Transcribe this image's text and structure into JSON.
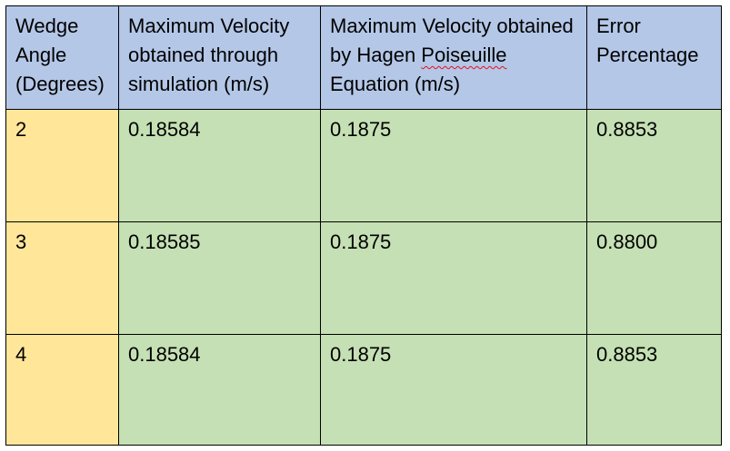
{
  "table": {
    "headers": [
      {
        "before": "Wedge Angle (Degrees)",
        "flagged": "",
        "after": ""
      },
      {
        "before": "Maximum Velocity obtained through simulation (m/s)",
        "flagged": "",
        "after": ""
      },
      {
        "before": "Maximum Velocity obtained by Hagen ",
        "flagged": "Poiseuille",
        "after": " Equation (m/s)"
      },
      {
        "before": "Error Percentage",
        "flagged": "",
        "after": ""
      }
    ],
    "rows": [
      [
        "2",
        "0.18584",
        "0.1875",
        "0.8853"
      ],
      [
        "3",
        "0.18585",
        "0.1875",
        "0.8800"
      ],
      [
        "4",
        "0.18584",
        "0.1875",
        "0.8853"
      ]
    ]
  },
  "colors": {
    "header_bg": "#b4c7e7",
    "angle_bg": "#ffe699",
    "value_bg": "#c5e0b4",
    "spellcheck_underline": "#e81123"
  }
}
